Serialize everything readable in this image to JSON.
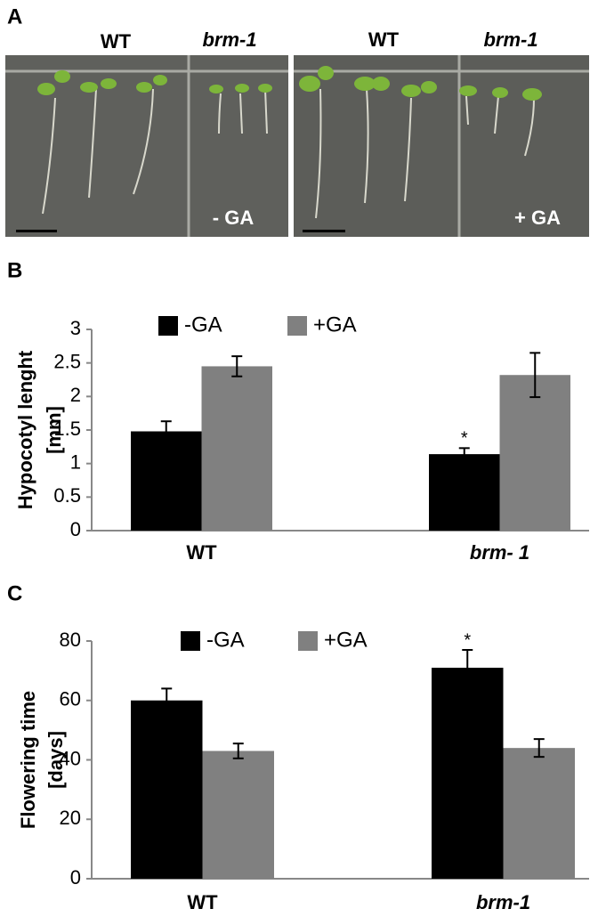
{
  "panel_a": {
    "panel_label": "A",
    "left": {
      "genotypes": [
        "WT",
        "brm-1"
      ],
      "treatment": "- GA"
    },
    "right": {
      "genotypes": [
        "WT",
        "brm-1"
      ],
      "treatment": "+ GA"
    }
  },
  "chart_data": [
    {
      "type": "bar",
      "panel_label": "B",
      "ylabel": [
        "Hypocotyl lenght",
        "[mm]"
      ],
      "categories": [
        "WT",
        "brm- 1"
      ],
      "series": [
        {
          "name": "-GA",
          "color": "#000000",
          "values": [
            1.48,
            1.14
          ],
          "errors": [
            0.15,
            0.09
          ]
        },
        {
          "name": "+GA",
          "color": "#808080",
          "values": [
            2.45,
            2.32
          ],
          "errors": [
            0.15,
            0.33
          ]
        }
      ],
      "annotations": [
        {
          "text": "*",
          "category_index": 1,
          "series_index": 0
        }
      ],
      "ylim": [
        0,
        3
      ],
      "yticks": [
        0,
        0.5,
        1,
        1.5,
        2,
        2.5,
        3
      ],
      "legend": "top",
      "grid": false
    },
    {
      "type": "bar",
      "panel_label": "C",
      "ylabel": [
        "Flowering time",
        "[days]"
      ],
      "categories": [
        "WT",
        "brm-1"
      ],
      "series": [
        {
          "name": "-GA",
          "color": "#000000",
          "values": [
            60,
            71
          ],
          "errors": [
            4,
            6
          ]
        },
        {
          "name": "+GA",
          "color": "#808080",
          "values": [
            43,
            44
          ],
          "errors": [
            2.5,
            3
          ]
        }
      ],
      "annotations": [
        {
          "text": "*",
          "category_index": 1,
          "series_index": 0
        }
      ],
      "ylim": [
        0,
        80
      ],
      "yticks": [
        0,
        20,
        40,
        60,
        80
      ],
      "legend": "top",
      "grid": false
    }
  ]
}
